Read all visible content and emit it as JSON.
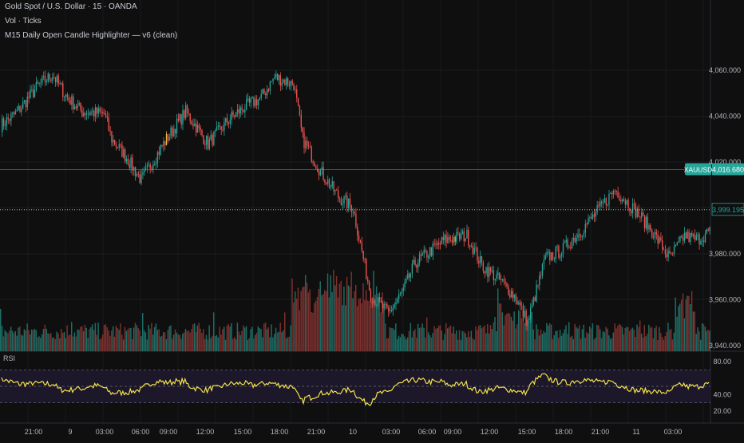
{
  "legend": {
    "symbol_line": "Gold Spot / U.S. Dollar · 15 · OANDA",
    "volume_label": "Vol · Ticks",
    "indicator_label": "M15 Daily Open Candle Highlighter — v6 (clean)"
  },
  "rsi": {
    "label": "RSI",
    "axis_labels": [
      "80.00",
      "40.00",
      "20.00"
    ]
  },
  "price_axis": {
    "labels": [
      "4,060.000",
      "4,040.000",
      "4,020.000",
      "3,980.000",
      "3,960.000",
      "3,940.000"
    ],
    "symbol_tag": "XAUUSD",
    "current_price": "4,016.680",
    "secondary_price": "3,999.195"
  },
  "time_axis": {
    "labels": [
      "21:00",
      "9",
      "03:00",
      "06:00",
      "09:00",
      "12:00",
      "15:00",
      "18:00",
      "21:00",
      "10",
      "03:00",
      "06:00",
      "09:00",
      "12:00",
      "15:00",
      "18:00",
      "21:00",
      "11",
      "03:00"
    ]
  },
  "colors": {
    "bull": "#26a69a",
    "bear": "#ef5350",
    "highlight": "#f5b942",
    "rsi_line": "#f2e14c",
    "price_line": "#26a69a"
  },
  "chart_data": {
    "type": "candlestick",
    "interval": "15 minutes",
    "y_range": [
      3938,
      4066
    ],
    "current_price": 4016.68,
    "dotted_level": 3999.195,
    "series": [
      {
        "name": "price",
        "anchors": [
          [
            0,
            4036
          ],
          [
            10,
            4041
          ],
          [
            25,
            4053
          ],
          [
            35,
            4058
          ],
          [
            45,
            4048
          ],
          [
            50,
            4045
          ],
          [
            55,
            4042
          ],
          [
            70,
            4041
          ],
          [
            75,
            4030
          ],
          [
            85,
            4022
          ],
          [
            95,
            4012
          ],
          [
            110,
            4028
          ],
          [
            125,
            4042
          ],
          [
            140,
            4028
          ],
          [
            155,
            4039
          ],
          [
            165,
            4044
          ],
          [
            176,
            4048
          ],
          [
            185,
            4057
          ],
          [
            198,
            4054
          ],
          [
            204,
            4030
          ],
          [
            216,
            4016
          ],
          [
            228,
            4005
          ],
          [
            238,
            4000
          ],
          [
            250,
            3962
          ],
          [
            262,
            3954
          ],
          [
            272,
            3964
          ],
          [
            280,
            3976
          ],
          [
            292,
            3982
          ],
          [
            300,
            3986
          ],
          [
            315,
            3988
          ],
          [
            325,
            3975
          ],
          [
            338,
            3968
          ],
          [
            348,
            3961
          ],
          [
            356,
            3950
          ],
          [
            368,
            3978
          ],
          [
            380,
            3982
          ],
          [
            392,
            3990
          ],
          [
            400,
            3996
          ],
          [
            415,
            4008
          ],
          [
            430,
            3998
          ],
          [
            440,
            3990
          ],
          [
            452,
            3978
          ],
          [
            462,
            3988
          ],
          [
            470,
            3986
          ],
          [
            480,
            3990
          ]
        ]
      },
      {
        "name": "volume",
        "note": "tick volume histogram"
      },
      {
        "name": "RSI",
        "levels": [
          70,
          50,
          30
        ]
      }
    ]
  }
}
